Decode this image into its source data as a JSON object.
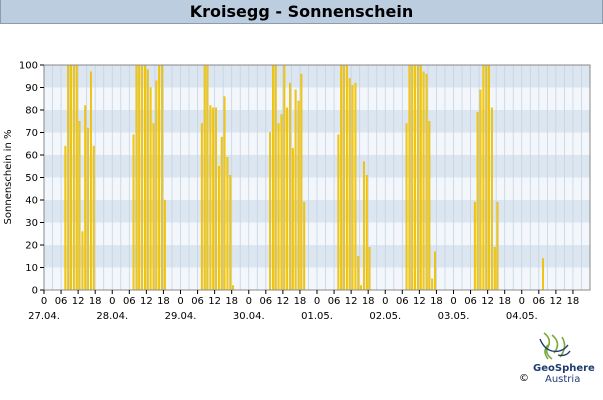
{
  "header": {
    "title": "Kroisegg - Sonnenschein"
  },
  "logo": {
    "name": "GeoSphere",
    "sub": "Austria",
    "copyright": "©",
    "icon": "geosphere-logo-icon"
  },
  "colors": {
    "bar": "#f5c800",
    "bar_edge": "#e0b000",
    "band_dark": "#dce6f0",
    "band_light": "#f3f7fb",
    "grid": "#c5d3e2",
    "title_bg": "#bccddf"
  },
  "chart_data": {
    "type": "bar",
    "title": "Kroisegg - Sonnenschein",
    "ylabel": "Sonnenschein in %",
    "xlabel": "",
    "ylim": [
      0,
      100
    ],
    "yticks": [
      0,
      10,
      20,
      30,
      40,
      50,
      60,
      70,
      80,
      90,
      100
    ],
    "grid": true,
    "xticks_hours": [
      "0",
      "06",
      "12",
      "18"
    ],
    "dates": [
      "27.04.",
      "28.04.",
      "29.04.",
      "30.04.",
      "01.05.",
      "02.05.",
      "03.05.",
      "04.05."
    ],
    "interval_hours": 1,
    "days": [
      {
        "date": "27.04.",
        "values": [
          0,
          0,
          0,
          0,
          0,
          0,
          0,
          64,
          100,
          100,
          100,
          100,
          75,
          26,
          82,
          72,
          97,
          64,
          0,
          0,
          0,
          0,
          0,
          0
        ]
      },
      {
        "date": "28.04.",
        "values": [
          0,
          0,
          0,
          0,
          0,
          0,
          0,
          69,
          100,
          100,
          100,
          100,
          98,
          90,
          74,
          93,
          100,
          100,
          40,
          0,
          0,
          0,
          0,
          0
        ]
      },
      {
        "date": "29.04.",
        "values": [
          0,
          0,
          0,
          0,
          0,
          0,
          0,
          74,
          100,
          100,
          82,
          81,
          81,
          55,
          68,
          86,
          59,
          51,
          2,
          0,
          0,
          0,
          0,
          0
        ]
      },
      {
        "date": "30.04.",
        "values": [
          0,
          0,
          0,
          0,
          0,
          0,
          0,
          70,
          100,
          100,
          74,
          78,
          100,
          81,
          92,
          63,
          89,
          84,
          96,
          39,
          0,
          0,
          0,
          0
        ]
      },
      {
        "date": "01.05.",
        "values": [
          0,
          0,
          0,
          0,
          0,
          0,
          0,
          69,
          100,
          100,
          100,
          94,
          91,
          92,
          15,
          2,
          57,
          51,
          19,
          0,
          0,
          0,
          0,
          0
        ]
      },
      {
        "date": "02.05.",
        "values": [
          0,
          0,
          0,
          0,
          0,
          0,
          0,
          74,
          100,
          100,
          100,
          100,
          100,
          97,
          96,
          75,
          5,
          17,
          0,
          0,
          0,
          0,
          0,
          0
        ]
      },
      {
        "date": "03.05.",
        "values": [
          0,
          0,
          0,
          0,
          0,
          0,
          0,
          39,
          79,
          89,
          100,
          100,
          100,
          81,
          19,
          39,
          0,
          0,
          0,
          0,
          0,
          0,
          0,
          0
        ]
      },
      {
        "date": "04.05.",
        "values": [
          0,
          0,
          0,
          0,
          0,
          0,
          0,
          14
        ]
      }
    ]
  }
}
